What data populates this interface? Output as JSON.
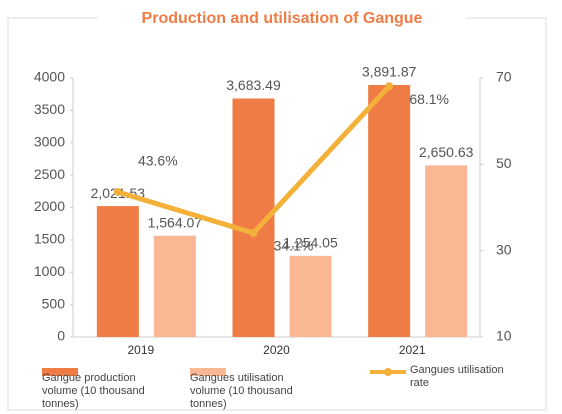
{
  "chart_data": {
    "type": "bar-line",
    "title": "Production and utilisation of Gangue",
    "categories": [
      "2019",
      "2020",
      "2021"
    ],
    "series": [
      {
        "name": "Gangue production volume (10 thousand tonnes)",
        "type": "bar",
        "color": "#f07c45",
        "values": [
          2021.53,
          3683.49,
          3891.87
        ],
        "value_labels": [
          "2,021.53",
          "3,683.49",
          "3,891.87"
        ]
      },
      {
        "name": "Gangues utilisation volume (10 thousand tonnes)",
        "type": "bar",
        "color": "#f9b794",
        "values": [
          1564.07,
          1254.05,
          2650.63
        ],
        "value_labels": [
          "1,564.07",
          "1,254.05",
          "2,650.63"
        ]
      },
      {
        "name": "Gangues utilisation rate",
        "type": "line",
        "axis": "y2",
        "color": "#f4b13a",
        "values": [
          43.6,
          34.1,
          68.1
        ],
        "value_labels": [
          "43.6%",
          "34.1%",
          "68.1%"
        ]
      }
    ],
    "ylim": [
      0,
      4000
    ],
    "yticks": [
      0,
      500,
      1000,
      1500,
      2000,
      2500,
      3000,
      3500,
      4000
    ],
    "y2lim": [
      10,
      70
    ],
    "y2ticks": [
      10,
      30,
      50,
      70
    ]
  }
}
